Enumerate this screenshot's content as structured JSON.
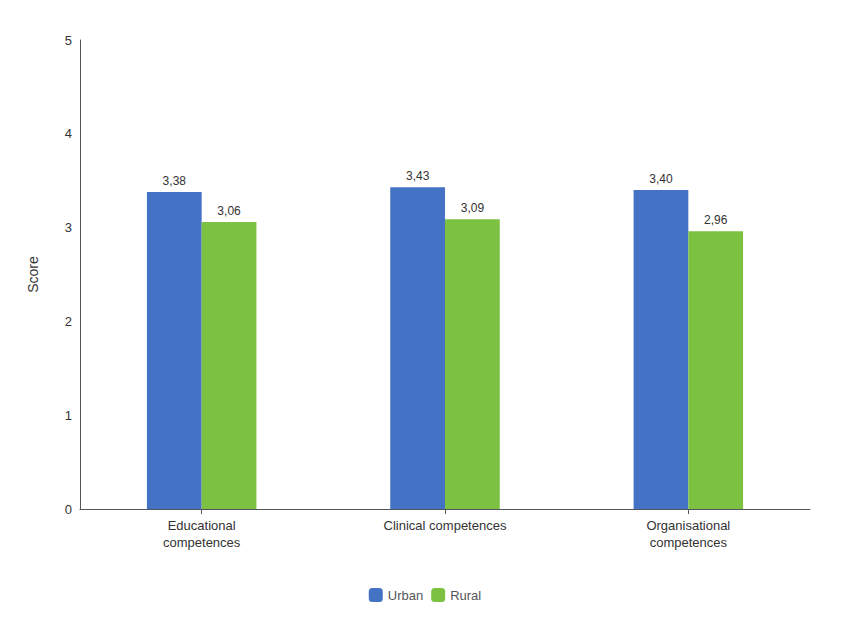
{
  "chart_data": {
    "type": "bar",
    "categories": [
      "Educational\ncompetences",
      "Clinical competences",
      "Organisational\ncompetences"
    ],
    "series": [
      {
        "name": "Urban",
        "color": "#4472C4",
        "values": [
          3.38,
          3.43,
          3.4
        ],
        "value_labels": [
          "3,38",
          "3,43",
          "3,40"
        ]
      },
      {
        "name": "Rural",
        "color": "#7DC142",
        "values": [
          3.06,
          3.09,
          2.96
        ],
        "value_labels": [
          "3,06",
          "3,09",
          "2,96"
        ]
      }
    ],
    "ylabel": "Score",
    "ylim": [
      0,
      5
    ],
    "yticks": [
      0,
      1,
      2,
      3,
      4,
      5
    ],
    "grid": false,
    "legend": "bottom",
    "data_labels": true
  }
}
